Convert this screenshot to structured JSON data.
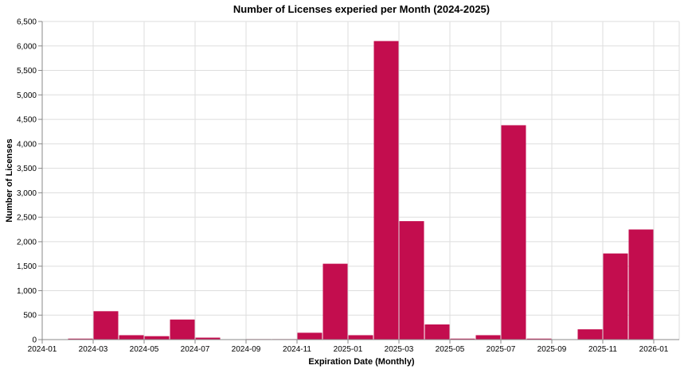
{
  "chart_data": {
    "type": "bar",
    "title": "Number of Licenses experied per Month (2024-2025)",
    "xlabel": "Expiration Date (Monthly)",
    "ylabel": "Number of Licenses",
    "ylim": [
      0,
      6500
    ],
    "yticks": [
      0,
      500,
      1000,
      1500,
      2000,
      2500,
      3000,
      3500,
      4000,
      4500,
      5000,
      5500,
      6000,
      6500
    ],
    "ytick_labels": [
      "0",
      "500",
      "1,000",
      "1,500",
      "2,000",
      "2,500",
      "3,000",
      "3,500",
      "4,000",
      "4,500",
      "5,000",
      "5,500",
      "6,000",
      "6,500"
    ],
    "xtick_labels": [
      "2024-01",
      "2024-03",
      "2024-05",
      "2024-07",
      "2024-09",
      "2024-11",
      "2025-01",
      "2025-03",
      "2025-05",
      "2025-07",
      "2025-09",
      "2025-11",
      "2026-01"
    ],
    "categories": [
      "2024-01",
      "2024-02",
      "2024-03",
      "2024-04",
      "2024-05",
      "2024-06",
      "2024-07",
      "2024-08",
      "2024-09",
      "2024-10",
      "2024-11",
      "2024-12",
      "2025-01",
      "2025-02",
      "2025-03",
      "2025-04",
      "2025-05",
      "2025-06",
      "2025-07",
      "2025-08",
      "2025-09",
      "2025-10",
      "2025-11",
      "2025-12"
    ],
    "values": [
      0,
      20,
      580,
      90,
      70,
      410,
      40,
      0,
      10,
      10,
      140,
      1550,
      90,
      6100,
      2420,
      310,
      20,
      90,
      4380,
      20,
      0,
      210,
      1760,
      2250
    ],
    "bar_color": "#c30d4e",
    "grid": true,
    "legend": "none"
  }
}
